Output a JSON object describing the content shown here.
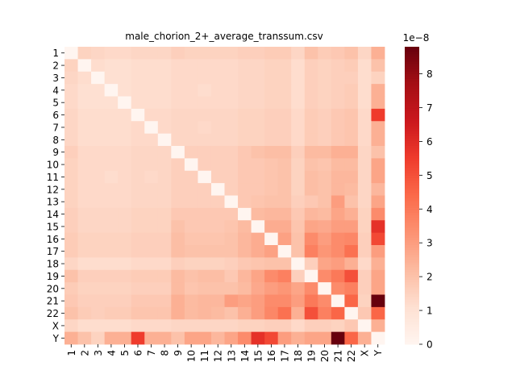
{
  "chart_data": {
    "type": "heatmap",
    "title": "male_chorion_2+_average_transsum.csv",
    "labels": [
      "1",
      "2",
      "3",
      "4",
      "5",
      "6",
      "7",
      "8",
      "9",
      "10",
      "11",
      "12",
      "13",
      "14",
      "15",
      "16",
      "17",
      "18",
      "19",
      "20",
      "21",
      "22",
      "X",
      "Y"
    ],
    "colormap": "Reds",
    "vmin": 0,
    "vmax": 8.8,
    "colorbar_ticks": [
      0,
      1,
      2,
      3,
      4,
      5,
      6,
      7,
      8
    ],
    "colorbar_tick_labels": [
      "0",
      "1",
      "2",
      "3",
      "4",
      "5",
      "6",
      "7",
      "8"
    ],
    "colorbar_offset_label": "1e−8",
    "values": [
      [
        0.0,
        1.5,
        1.4,
        1.3,
        1.3,
        1.4,
        1.4,
        1.4,
        1.6,
        1.5,
        1.5,
        1.5,
        1.5,
        1.6,
        1.6,
        1.7,
        1.7,
        1.4,
        2.0,
        1.7,
        1.8,
        2.0,
        1.4,
        2.5
      ],
      [
        1.5,
        0.0,
        1.2,
        1.1,
        1.1,
        1.2,
        1.2,
        1.2,
        1.3,
        1.3,
        1.3,
        1.3,
        1.3,
        1.4,
        1.4,
        1.5,
        1.5,
        1.2,
        1.6,
        1.5,
        1.6,
        1.7,
        1.2,
        2.0
      ],
      [
        1.4,
        1.2,
        0.0,
        1.1,
        1.1,
        1.2,
        1.2,
        1.2,
        1.3,
        1.3,
        1.3,
        1.3,
        1.3,
        1.4,
        1.4,
        1.5,
        1.5,
        1.2,
        1.6,
        1.5,
        1.6,
        1.6,
        1.2,
        1.5
      ],
      [
        1.3,
        1.1,
        1.1,
        0.0,
        1.1,
        1.2,
        1.2,
        1.2,
        1.3,
        1.3,
        1.2,
        1.3,
        1.3,
        1.4,
        1.4,
        1.5,
        1.5,
        1.2,
        1.6,
        1.5,
        1.6,
        1.7,
        1.2,
        2.5
      ],
      [
        1.3,
        1.1,
        1.1,
        1.1,
        0.0,
        1.2,
        1.2,
        1.2,
        1.3,
        1.3,
        1.3,
        1.3,
        1.3,
        1.4,
        1.4,
        1.5,
        1.5,
        1.2,
        1.6,
        1.5,
        1.6,
        1.7,
        1.2,
        2.5
      ],
      [
        1.4,
        1.2,
        1.2,
        1.2,
        1.2,
        0.0,
        1.3,
        1.3,
        1.4,
        1.4,
        1.4,
        1.4,
        1.4,
        1.5,
        1.5,
        1.6,
        1.6,
        1.3,
        1.7,
        1.6,
        1.8,
        1.9,
        1.3,
        5.5
      ],
      [
        1.4,
        1.2,
        1.2,
        1.2,
        1.2,
        1.3,
        0.0,
        1.3,
        1.4,
        1.4,
        1.3,
        1.4,
        1.4,
        1.5,
        1.5,
        1.6,
        1.6,
        1.3,
        1.7,
        1.6,
        1.8,
        1.9,
        1.3,
        2.5
      ],
      [
        1.4,
        1.2,
        1.2,
        1.2,
        1.2,
        1.3,
        1.3,
        0.0,
        1.4,
        1.4,
        1.4,
        1.4,
        1.4,
        1.5,
        1.5,
        1.6,
        1.6,
        1.3,
        1.7,
        1.6,
        1.8,
        1.9,
        1.3,
        2.5
      ],
      [
        1.6,
        1.3,
        1.3,
        1.3,
        1.3,
        1.4,
        1.4,
        1.4,
        0.0,
        1.6,
        1.6,
        1.6,
        1.6,
        1.8,
        2.0,
        2.1,
        2.1,
        1.6,
        2.2,
        2.2,
        2.5,
        2.5,
        1.4,
        2.0
      ],
      [
        1.5,
        1.3,
        1.3,
        1.3,
        1.3,
        1.4,
        1.4,
        1.4,
        1.6,
        0.0,
        1.6,
        1.6,
        1.6,
        1.8,
        1.8,
        1.9,
        2.0,
        1.5,
        2.0,
        1.9,
        2.2,
        2.2,
        1.4,
        2.8
      ],
      [
        1.5,
        1.3,
        1.3,
        1.2,
        1.3,
        1.4,
        1.3,
        1.4,
        1.6,
        1.6,
        0.0,
        1.6,
        1.6,
        1.8,
        1.8,
        1.9,
        2.0,
        1.5,
        2.1,
        2.0,
        2.3,
        2.3,
        1.4,
        2.8
      ],
      [
        1.5,
        1.3,
        1.3,
        1.3,
        1.3,
        1.4,
        1.4,
        1.4,
        1.6,
        1.6,
        1.6,
        0.0,
        1.6,
        1.8,
        1.8,
        1.9,
        2.0,
        1.5,
        2.1,
        2.0,
        2.3,
        2.2,
        1.4,
        2.3
      ],
      [
        1.5,
        1.3,
        1.3,
        1.3,
        1.3,
        1.4,
        1.4,
        1.4,
        1.6,
        1.6,
        1.6,
        1.6,
        0.0,
        1.8,
        1.9,
        2.0,
        2.0,
        1.6,
        1.8,
        2.0,
        3.0,
        2.0,
        1.4,
        2.8
      ],
      [
        1.6,
        1.4,
        1.4,
        1.4,
        1.4,
        1.5,
        1.5,
        1.5,
        1.8,
        1.8,
        1.8,
        1.8,
        1.8,
        0.0,
        2.2,
        2.3,
        2.3,
        1.8,
        2.3,
        2.2,
        2.8,
        2.5,
        1.5,
        3.5
      ],
      [
        1.6,
        1.4,
        1.4,
        1.4,
        1.4,
        1.5,
        1.5,
        1.5,
        2.0,
        1.8,
        1.8,
        1.8,
        1.9,
        2.2,
        0.0,
        2.6,
        2.6,
        1.9,
        2.8,
        2.7,
        3.0,
        3.0,
        1.5,
        5.8
      ],
      [
        1.7,
        1.5,
        1.5,
        1.5,
        1.5,
        1.6,
        1.6,
        1.6,
        2.1,
        1.9,
        1.9,
        1.9,
        2.0,
        2.3,
        2.6,
        0.0,
        2.9,
        2.0,
        3.5,
        3.0,
        3.5,
        3.6,
        1.6,
        5.2
      ],
      [
        1.7,
        1.5,
        1.5,
        1.5,
        1.5,
        1.6,
        1.6,
        1.6,
        2.1,
        2.0,
        2.0,
        2.0,
        2.0,
        2.3,
        2.6,
        2.9,
        0.0,
        2.0,
        3.8,
        3.2,
        3.5,
        4.2,
        1.6,
        3.0
      ],
      [
        1.4,
        1.2,
        1.2,
        1.2,
        1.2,
        1.3,
        1.3,
        1.3,
        1.6,
        1.5,
        1.5,
        1.5,
        1.6,
        1.8,
        1.9,
        2.0,
        2.0,
        0.0,
        1.6,
        2.8,
        3.0,
        2.5,
        1.3,
        2.5
      ],
      [
        2.0,
        1.6,
        1.6,
        1.6,
        1.6,
        1.7,
        1.7,
        1.7,
        2.2,
        2.0,
        2.1,
        2.1,
        1.8,
        2.3,
        2.8,
        3.5,
        3.8,
        1.6,
        0.0,
        3.5,
        4.0,
        5.0,
        1.6,
        2.8
      ],
      [
        1.7,
        1.5,
        1.5,
        1.5,
        1.5,
        1.6,
        1.6,
        1.6,
        2.2,
        1.9,
        2.0,
        2.0,
        2.0,
        2.2,
        2.7,
        3.0,
        3.2,
        2.8,
        3.5,
        0.0,
        3.5,
        3.8,
        1.6,
        2.8
      ],
      [
        1.8,
        1.6,
        1.6,
        1.6,
        1.6,
        1.8,
        1.8,
        1.8,
        2.5,
        2.2,
        2.3,
        2.3,
        3.0,
        2.8,
        3.0,
        3.5,
        3.5,
        3.0,
        4.0,
        3.5,
        0.0,
        4.5,
        1.5,
        8.8
      ],
      [
        2.0,
        1.7,
        1.6,
        1.7,
        1.7,
        1.9,
        1.9,
        1.9,
        2.5,
        2.2,
        2.3,
        2.2,
        2.0,
        2.5,
        3.0,
        3.6,
        4.2,
        2.5,
        5.0,
        3.8,
        4.5,
        0.0,
        1.8,
        4.5
      ],
      [
        1.4,
        1.2,
        1.2,
        1.2,
        1.2,
        1.3,
        1.3,
        1.3,
        1.4,
        1.4,
        1.4,
        1.4,
        1.4,
        1.5,
        1.5,
        1.6,
        1.6,
        1.3,
        1.6,
        1.6,
        1.5,
        1.8,
        0.0,
        2.5
      ],
      [
        2.5,
        2.0,
        1.5,
        2.5,
        2.5,
        5.5,
        2.5,
        2.5,
        2.0,
        2.8,
        2.8,
        2.3,
        2.8,
        3.5,
        5.8,
        5.2,
        3.0,
        2.5,
        2.8,
        2.8,
        8.8,
        4.5,
        2.5,
        0.0
      ]
    ]
  }
}
